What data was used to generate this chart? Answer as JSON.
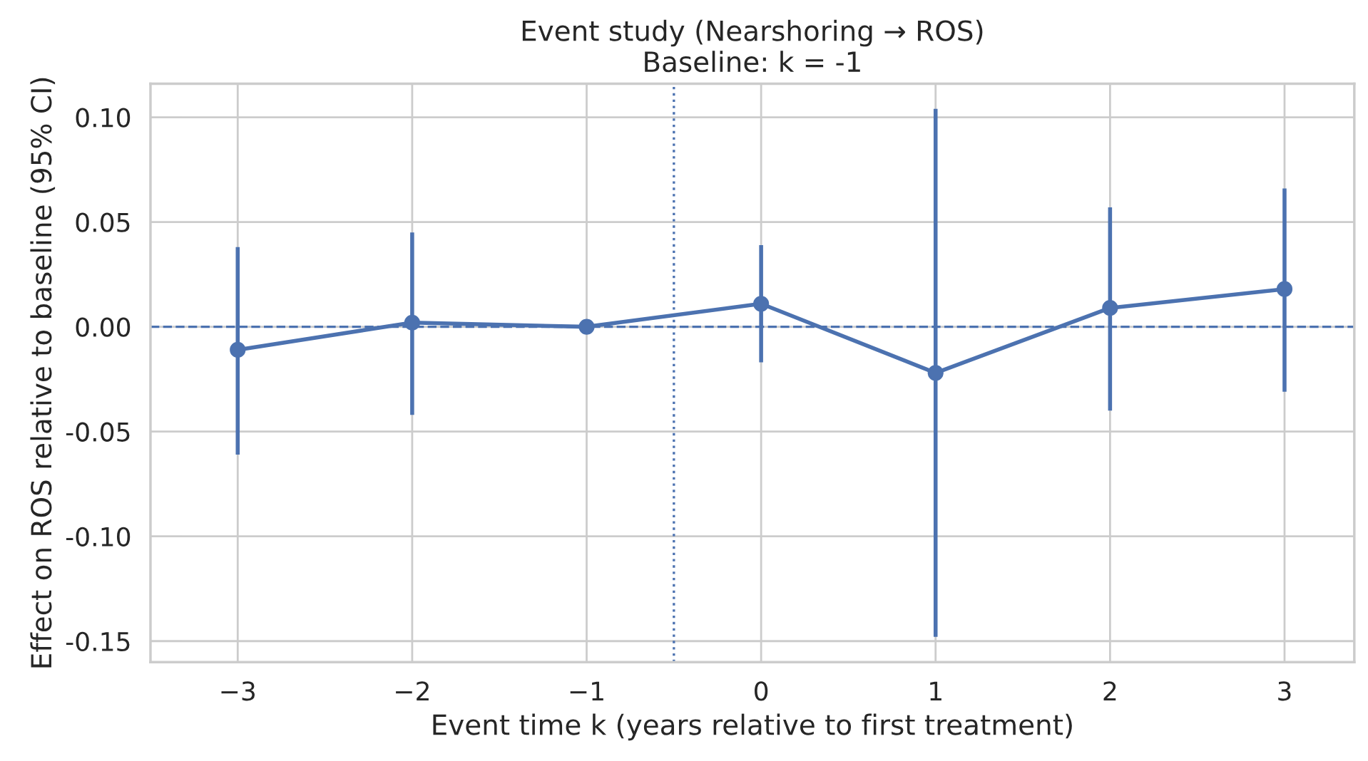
{
  "chart_data": {
    "type": "line",
    "title": "Event study (Nearshoring → ROS)\nBaseline: k = -1",
    "xlabel": "Event time k (years relative to first treatment)",
    "ylabel": "Effect on ROS relative to baseline (95% CI)",
    "x": [
      -3,
      -2,
      -1,
      0,
      1,
      2,
      3
    ],
    "series": [
      {
        "color": "#4c72b0",
        "values": [
          -0.011,
          0.002,
          0.0,
          0.011,
          -0.022,
          0.009,
          0.018
        ],
        "errors": [
          [
            -0.061,
            0.038
          ],
          [
            -0.042,
            0.045
          ],
          null,
          [
            -0.017,
            0.039
          ],
          [
            -0.148,
            0.104
          ],
          [
            -0.04,
            0.057
          ],
          [
            -0.031,
            0.066
          ]
        ]
      }
    ],
    "marker": "circle",
    "line_style": "solid",
    "xlim": [
      -3.5,
      3.4
    ],
    "ylim": [
      -0.16,
      0.116
    ],
    "xticks": [
      {
        "value": -3,
        "label": "−3"
      },
      {
        "value": -2,
        "label": "−2"
      },
      {
        "value": -1,
        "label": "−1"
      },
      0,
      1,
      2,
      3
    ],
    "yticks": [
      {
        "value": -0.15,
        "label": "-0.15"
      },
      {
        "value": -0.1,
        "label": "-0.10"
      },
      {
        "value": -0.05,
        "label": "-0.05"
      },
      {
        "value": 0,
        "label": "0.00"
      },
      {
        "value": 0.05,
        "label": "0.05"
      },
      {
        "value": 0.1,
        "label": "0.10"
      }
    ],
    "grid": true,
    "ref_lines": [
      {
        "axis": "y",
        "value": 0,
        "color": "#4c72b0",
        "line_style": "dashed"
      },
      {
        "axis": "x",
        "value": -0.5,
        "color": "#4c72b0",
        "line_style": "dotted"
      }
    ]
  }
}
